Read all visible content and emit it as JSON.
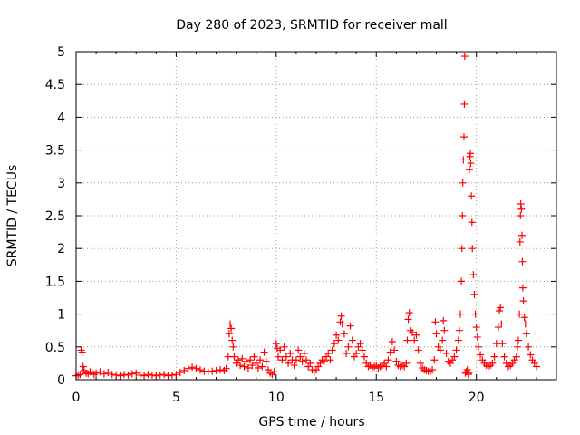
{
  "chart_data": {
    "type": "scatter",
    "title": "Day 280 of 2023, SRMTID for receiver mall",
    "xlabel": "GPS time / hours",
    "ylabel": "SRMTID / TECUs",
    "xlim": [
      0,
      24
    ],
    "ylim": [
      0,
      5
    ],
    "xticks": [
      0,
      5,
      10,
      15,
      20
    ],
    "yticks": [
      0,
      0.5,
      1,
      1.5,
      2,
      2.5,
      3,
      3.5,
      4,
      4.5,
      5
    ],
    "grid": true,
    "marker": "+",
    "color": "#ff0000",
    "series": [
      {
        "name": "SRMTID",
        "points": [
          [
            0.0,
            0.06
          ],
          [
            0.1,
            0.07
          ],
          [
            0.2,
            0.08
          ],
          [
            0.25,
            0.45
          ],
          [
            0.3,
            0.42
          ],
          [
            0.35,
            0.2
          ],
          [
            0.4,
            0.14
          ],
          [
            0.5,
            0.1
          ],
          [
            0.6,
            0.09
          ],
          [
            0.7,
            0.12
          ],
          [
            0.8,
            0.1
          ],
          [
            0.9,
            0.08
          ],
          [
            1.0,
            0.1
          ],
          [
            1.2,
            0.12
          ],
          [
            1.4,
            0.09
          ],
          [
            1.6,
            0.11
          ],
          [
            1.8,
            0.08
          ],
          [
            2.0,
            0.07
          ],
          [
            2.2,
            0.06
          ],
          [
            2.4,
            0.08
          ],
          [
            2.6,
            0.07
          ],
          [
            2.8,
            0.09
          ],
          [
            3.0,
            0.1
          ],
          [
            3.2,
            0.07
          ],
          [
            3.4,
            0.06
          ],
          [
            3.6,
            0.08
          ],
          [
            3.8,
            0.07
          ],
          [
            4.0,
            0.06
          ],
          [
            4.2,
            0.07
          ],
          [
            4.4,
            0.08
          ],
          [
            4.6,
            0.06
          ],
          [
            4.8,
            0.07
          ],
          [
            5.0,
            0.08
          ],
          [
            5.2,
            0.11
          ],
          [
            5.4,
            0.14
          ],
          [
            5.6,
            0.17
          ],
          [
            5.8,
            0.19
          ],
          [
            6.0,
            0.17
          ],
          [
            6.2,
            0.15
          ],
          [
            6.4,
            0.13
          ],
          [
            6.6,
            0.12
          ],
          [
            6.8,
            0.13
          ],
          [
            7.0,
            0.14
          ],
          [
            7.2,
            0.15
          ],
          [
            7.4,
            0.14
          ],
          [
            7.5,
            0.17
          ],
          [
            7.6,
            0.35
          ],
          [
            7.65,
            0.7
          ],
          [
            7.7,
            0.85
          ],
          [
            7.75,
            0.78
          ],
          [
            7.8,
            0.6
          ],
          [
            7.85,
            0.5
          ],
          [
            7.9,
            0.35
          ],
          [
            8.0,
            0.25
          ],
          [
            8.1,
            0.3
          ],
          [
            8.2,
            0.22
          ],
          [
            8.3,
            0.32
          ],
          [
            8.4,
            0.2
          ],
          [
            8.5,
            0.28
          ],
          [
            8.6,
            0.18
          ],
          [
            8.7,
            0.3
          ],
          [
            8.8,
            0.22
          ],
          [
            8.9,
            0.35
          ],
          [
            9.0,
            0.25
          ],
          [
            9.1,
            0.18
          ],
          [
            9.2,
            0.3
          ],
          [
            9.3,
            0.2
          ],
          [
            9.4,
            0.42
          ],
          [
            9.5,
            0.28
          ],
          [
            9.6,
            0.15
          ],
          [
            9.7,
            0.1
          ],
          [
            9.8,
            0.08
          ],
          [
            9.9,
            0.12
          ],
          [
            10.0,
            0.55
          ],
          [
            10.05,
            0.48
          ],
          [
            10.1,
            0.35
          ],
          [
            10.2,
            0.45
          ],
          [
            10.3,
            0.3
          ],
          [
            10.4,
            0.5
          ],
          [
            10.5,
            0.35
          ],
          [
            10.6,
            0.25
          ],
          [
            10.7,
            0.4
          ],
          [
            10.8,
            0.3
          ],
          [
            10.9,
            0.22
          ],
          [
            11.0,
            0.3
          ],
          [
            11.1,
            0.45
          ],
          [
            11.2,
            0.35
          ],
          [
            11.3,
            0.28
          ],
          [
            11.4,
            0.4
          ],
          [
            11.5,
            0.3
          ],
          [
            11.6,
            0.2
          ],
          [
            11.7,
            0.25
          ],
          [
            11.8,
            0.15
          ],
          [
            11.9,
            0.12
          ],
          [
            12.0,
            0.15
          ],
          [
            12.1,
            0.2
          ],
          [
            12.2,
            0.25
          ],
          [
            12.3,
            0.3
          ],
          [
            12.4,
            0.28
          ],
          [
            12.5,
            0.35
          ],
          [
            12.6,
            0.4
          ],
          [
            12.7,
            0.3
          ],
          [
            12.8,
            0.45
          ],
          [
            12.9,
            0.55
          ],
          [
            13.0,
            0.68
          ],
          [
            13.1,
            0.6
          ],
          [
            13.2,
            0.88
          ],
          [
            13.25,
            0.97
          ],
          [
            13.3,
            0.85
          ],
          [
            13.4,
            0.7
          ],
          [
            13.5,
            0.4
          ],
          [
            13.6,
            0.5
          ],
          [
            13.7,
            0.82
          ],
          [
            13.8,
            0.6
          ],
          [
            13.9,
            0.35
          ],
          [
            14.0,
            0.4
          ],
          [
            14.1,
            0.5
          ],
          [
            14.2,
            0.55
          ],
          [
            14.3,
            0.45
          ],
          [
            14.4,
            0.35
          ],
          [
            14.5,
            0.25
          ],
          [
            14.6,
            0.2
          ],
          [
            14.7,
            0.22
          ],
          [
            14.8,
            0.18
          ],
          [
            14.9,
            0.2
          ],
          [
            15.0,
            0.22
          ],
          [
            15.1,
            0.18
          ],
          [
            15.2,
            0.2
          ],
          [
            15.3,
            0.22
          ],
          [
            15.4,
            0.25
          ],
          [
            15.5,
            0.2
          ],
          [
            15.6,
            0.3
          ],
          [
            15.7,
            0.42
          ],
          [
            15.8,
            0.58
          ],
          [
            15.9,
            0.45
          ],
          [
            16.0,
            0.28
          ],
          [
            16.1,
            0.22
          ],
          [
            16.2,
            0.2
          ],
          [
            16.3,
            0.22
          ],
          [
            16.4,
            0.2
          ],
          [
            16.5,
            0.25
          ],
          [
            16.55,
            0.6
          ],
          [
            16.6,
            0.92
          ],
          [
            16.65,
            1.02
          ],
          [
            16.7,
            0.75
          ],
          [
            16.8,
            0.72
          ],
          [
            16.9,
            0.6
          ],
          [
            17.0,
            0.68
          ],
          [
            17.1,
            0.45
          ],
          [
            17.2,
            0.25
          ],
          [
            17.3,
            0.18
          ],
          [
            17.4,
            0.15
          ],
          [
            17.5,
            0.14
          ],
          [
            17.6,
            0.13
          ],
          [
            17.7,
            0.12
          ],
          [
            17.8,
            0.15
          ],
          [
            17.9,
            0.3
          ],
          [
            17.95,
            0.88
          ],
          [
            18.0,
            0.7
          ],
          [
            18.1,
            0.5
          ],
          [
            18.2,
            0.45
          ],
          [
            18.3,
            0.6
          ],
          [
            18.35,
            0.9
          ],
          [
            18.4,
            0.75
          ],
          [
            18.5,
            0.4
          ],
          [
            18.6,
            0.28
          ],
          [
            18.7,
            0.25
          ],
          [
            18.8,
            0.3
          ],
          [
            18.9,
            0.35
          ],
          [
            19.0,
            0.45
          ],
          [
            19.1,
            0.6
          ],
          [
            19.15,
            0.75
          ],
          [
            19.2,
            1.0
          ],
          [
            19.25,
            1.5
          ],
          [
            19.28,
            2.0
          ],
          [
            19.3,
            2.5
          ],
          [
            19.32,
            3.0
          ],
          [
            19.35,
            3.35
          ],
          [
            19.38,
            3.7
          ],
          [
            19.4,
            4.2
          ],
          [
            19.42,
            4.93
          ],
          [
            19.45,
            0.1
          ],
          [
            19.5,
            0.12
          ],
          [
            19.55,
            0.15
          ],
          [
            19.6,
            0.08
          ],
          [
            19.62,
            0.1
          ],
          [
            19.65,
            3.2
          ],
          [
            19.68,
            3.4
          ],
          [
            19.7,
            3.45
          ],
          [
            19.72,
            3.3
          ],
          [
            19.75,
            2.8
          ],
          [
            19.78,
            2.4
          ],
          [
            19.8,
            2.0
          ],
          [
            19.85,
            1.6
          ],
          [
            19.9,
            1.3
          ],
          [
            19.95,
            1.0
          ],
          [
            20.0,
            0.8
          ],
          [
            20.05,
            0.65
          ],
          [
            20.1,
            0.5
          ],
          [
            20.2,
            0.38
          ],
          [
            20.3,
            0.3
          ],
          [
            20.4,
            0.25
          ],
          [
            20.5,
            0.22
          ],
          [
            20.6,
            0.2
          ],
          [
            20.7,
            0.22
          ],
          [
            20.8,
            0.25
          ],
          [
            20.9,
            0.35
          ],
          [
            21.0,
            0.55
          ],
          [
            21.1,
            0.8
          ],
          [
            21.15,
            1.05
          ],
          [
            21.2,
            1.1
          ],
          [
            21.25,
            0.85
          ],
          [
            21.3,
            0.55
          ],
          [
            21.4,
            0.35
          ],
          [
            21.5,
            0.25
          ],
          [
            21.6,
            0.2
          ],
          [
            21.7,
            0.22
          ],
          [
            21.8,
            0.25
          ],
          [
            21.9,
            0.3
          ],
          [
            22.0,
            0.35
          ],
          [
            22.05,
            0.5
          ],
          [
            22.1,
            0.6
          ],
          [
            22.15,
            1.0
          ],
          [
            22.18,
            2.1
          ],
          [
            22.2,
            2.5
          ],
          [
            22.22,
            2.68
          ],
          [
            22.25,
            2.6
          ],
          [
            22.28,
            2.2
          ],
          [
            22.3,
            1.8
          ],
          [
            22.32,
            1.4
          ],
          [
            22.35,
            1.2
          ],
          [
            22.4,
            0.95
          ],
          [
            22.45,
            0.85
          ],
          [
            22.5,
            0.7
          ],
          [
            22.6,
            0.5
          ],
          [
            22.7,
            0.38
          ],
          [
            22.8,
            0.3
          ],
          [
            22.9,
            0.25
          ],
          [
            23.0,
            0.2
          ]
        ]
      }
    ]
  }
}
